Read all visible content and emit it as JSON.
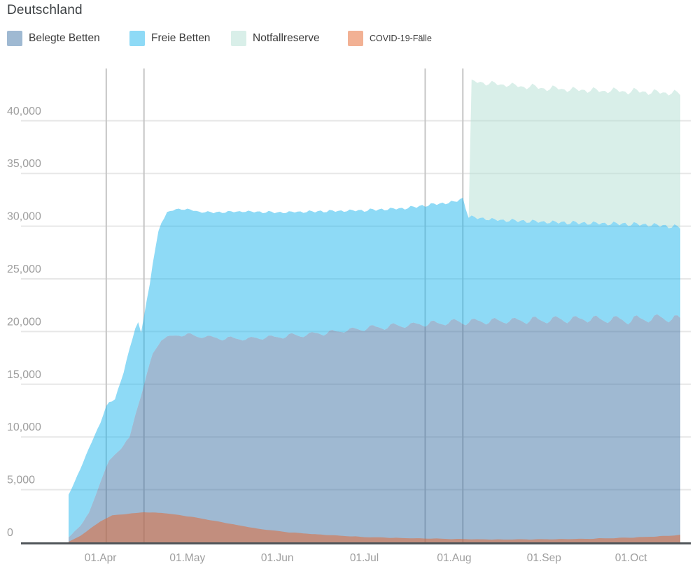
{
  "chart_data": {
    "type": "area",
    "title": "Deutschland",
    "stacking": "stacked areas (Belegte+Freie+Notfallreserve); COVID-19-Faelle drawn as semi-transparent overlay from baseline",
    "x_start": "2020-03-21",
    "x_end": "2020-10-18",
    "ylim": [
      0,
      45000
    ],
    "grid": "horizontal light gridlines every 5000; vertical marker lines at key dates",
    "legend_position": "top-left row under title",
    "legend": [
      {
        "label": "Belegte Betten",
        "color": "#9fb9d2"
      },
      {
        "label": "Freie Betten",
        "color": "#8edaf6"
      },
      {
        "label": "Notfallreserve",
        "color": "#d9efe9"
      },
      {
        "label": "COVID-19-Fälle",
        "color": "#f2b194"
      }
    ],
    "y_ticks": [
      {
        "value": 0,
        "label": "0"
      },
      {
        "value": 5000,
        "label": "5,000"
      },
      {
        "value": 10000,
        "label": "10,000"
      },
      {
        "value": 15000,
        "label": "15,000"
      },
      {
        "value": 20000,
        "label": "20,000"
      },
      {
        "value": 25000,
        "label": "25,000"
      },
      {
        "value": 30000,
        "label": "30,000"
      },
      {
        "value": 35000,
        "label": "35,000"
      },
      {
        "value": 40000,
        "label": "40,000"
      }
    ],
    "x_ticks": [
      {
        "date": "2020-04-01",
        "label": "01.Apr"
      },
      {
        "date": "2020-05-01",
        "label": "01.May"
      },
      {
        "date": "2020-06-01",
        "label": "01.Jun"
      },
      {
        "date": "2020-07-01",
        "label": "01.Jul"
      },
      {
        "date": "2020-08-01",
        "label": "01.Aug"
      },
      {
        "date": "2020-09-01",
        "label": "01.Sep"
      },
      {
        "date": "2020-10-01",
        "label": "01.Oct"
      }
    ],
    "marker_lines": [
      "2020-04-03",
      "2020-04-16",
      "2020-07-22",
      "2020-08-04"
    ],
    "series": [
      {
        "name": "Belegte Betten",
        "base_color": "#3f73a5",
        "rendered_color": "#9fb9d2",
        "stacked": true,
        "noise": 55,
        "wiggle": {
          "period_days": 7,
          "amp_start": 110,
          "amp_end": 460,
          "phase": 1.5
        },
        "anchors": [
          [
            "2020-03-21",
            400
          ],
          [
            "2020-03-24",
            1300
          ],
          [
            "2020-03-28",
            2700
          ],
          [
            "2020-04-01",
            5800
          ],
          [
            "2020-04-04",
            7700
          ],
          [
            "2020-04-08",
            9000
          ],
          [
            "2020-04-11",
            9800
          ],
          [
            "2020-04-13",
            12100
          ],
          [
            "2020-04-16",
            15000
          ],
          [
            "2020-04-19",
            17800
          ],
          [
            "2020-04-22",
            19300
          ],
          [
            "2020-04-26",
            19600
          ],
          [
            "2020-05-01",
            19700
          ],
          [
            "2020-05-10",
            19400
          ],
          [
            "2020-05-20",
            19300
          ],
          [
            "2020-06-01",
            19500
          ],
          [
            "2020-06-15",
            19800
          ],
          [
            "2020-07-01",
            20300
          ],
          [
            "2020-07-15",
            20600
          ],
          [
            "2020-08-01",
            20900
          ],
          [
            "2020-08-15",
            21000
          ],
          [
            "2020-09-01",
            21100
          ],
          [
            "2020-09-15",
            21200
          ],
          [
            "2020-10-01",
            21100
          ],
          [
            "2020-10-10",
            21300
          ],
          [
            "2020-10-18",
            21200
          ]
        ]
      },
      {
        "name": "Freie Betten",
        "base_color": "#1db5ed",
        "rendered_color": "#8edaf6",
        "stacked": true,
        "noise": 55,
        "wiggle": {
          "period_days": 7,
          "amp_start": 90,
          "amp_end": 380,
          "phase": 4.64
        },
        "anchors": [
          [
            "2020-03-21",
            4100
          ],
          [
            "2020-03-24",
            5000
          ],
          [
            "2020-03-28",
            6200
          ],
          [
            "2020-04-01",
            5600
          ],
          [
            "2020-04-03",
            5800
          ],
          [
            "2020-04-06",
            5200
          ],
          [
            "2020-04-09",
            6900
          ],
          [
            "2020-04-11",
            8500
          ],
          [
            "2020-04-13",
            8200
          ],
          [
            "2020-04-14",
            7800
          ],
          [
            "2020-04-15",
            5900
          ],
          [
            "2020-04-18",
            7600
          ],
          [
            "2020-04-21",
            10700
          ],
          [
            "2020-04-24",
            11800
          ],
          [
            "2020-04-27",
            12000
          ],
          [
            "2020-05-05",
            11800
          ],
          [
            "2020-05-20",
            12100
          ],
          [
            "2020-06-01",
            11800
          ],
          [
            "2020-06-15",
            11600
          ],
          [
            "2020-07-01",
            11200
          ],
          [
            "2020-07-15",
            11100
          ],
          [
            "2020-07-25",
            11300
          ],
          [
            "2020-08-01",
            11400
          ],
          [
            "2020-08-04",
            11700
          ],
          [
            "2020-08-06",
            9950
          ],
          [
            "2020-08-15",
            9600
          ],
          [
            "2020-09-01",
            9300
          ],
          [
            "2020-09-15",
            9100
          ],
          [
            "2020-10-01",
            9100
          ],
          [
            "2020-10-10",
            8800
          ],
          [
            "2020-10-18",
            8700
          ]
        ]
      },
      {
        "name": "Notfallreserve",
        "base_color": "#b3dfd3",
        "rendered_color": "#d9efe9",
        "stacked": true,
        "noise": 60,
        "wiggle": {
          "period_days": 7,
          "amp_start": 120,
          "amp_end": 140,
          "phase": 2.0
        },
        "anchors": [
          [
            "2020-08-06",
            0
          ],
          [
            "2020-08-07",
            12800
          ],
          [
            "2020-08-10",
            12900
          ],
          [
            "2020-08-15",
            12900
          ],
          [
            "2020-09-01",
            12700
          ],
          [
            "2020-09-15",
            12600
          ],
          [
            "2020-10-01",
            12600
          ],
          [
            "2020-10-10",
            12600
          ],
          [
            "2020-10-18",
            12700
          ]
        ]
      },
      {
        "name": "COVID-19-Fälle",
        "base_color": "#e56329",
        "rendered_color": "#f2b194",
        "stacked": false,
        "noise": 10,
        "wiggle": {
          "period_days": 7,
          "amp_start": 10,
          "amp_end": 25,
          "phase": 0.0
        },
        "anchors": [
          [
            "2020-03-21",
            60
          ],
          [
            "2020-03-25",
            600
          ],
          [
            "2020-04-01",
            2000
          ],
          [
            "2020-04-05",
            2550
          ],
          [
            "2020-04-10",
            2700
          ],
          [
            "2020-04-16",
            2850
          ],
          [
            "2020-04-22",
            2800
          ],
          [
            "2020-04-28",
            2600
          ],
          [
            "2020-05-05",
            2300
          ],
          [
            "2020-05-15",
            1800
          ],
          [
            "2020-05-25",
            1300
          ],
          [
            "2020-06-05",
            950
          ],
          [
            "2020-06-15",
            750
          ],
          [
            "2020-07-01",
            500
          ],
          [
            "2020-07-15",
            400
          ],
          [
            "2020-08-01",
            320
          ],
          [
            "2020-08-15",
            270
          ],
          [
            "2020-09-01",
            290
          ],
          [
            "2020-09-15",
            330
          ],
          [
            "2020-10-01",
            450
          ],
          [
            "2020-10-10",
            560
          ],
          [
            "2020-10-18",
            700
          ]
        ]
      }
    ],
    "colors": {
      "h_gridline": "#e7e7e7",
      "v_markerline": "#c5c5c5",
      "axis_line": "#51565a",
      "tick_label": "#9e9e9e",
      "title_text": "#3c4043",
      "legend_text": "#3a3a3a",
      "fill_opacity": 0.5
    }
  }
}
